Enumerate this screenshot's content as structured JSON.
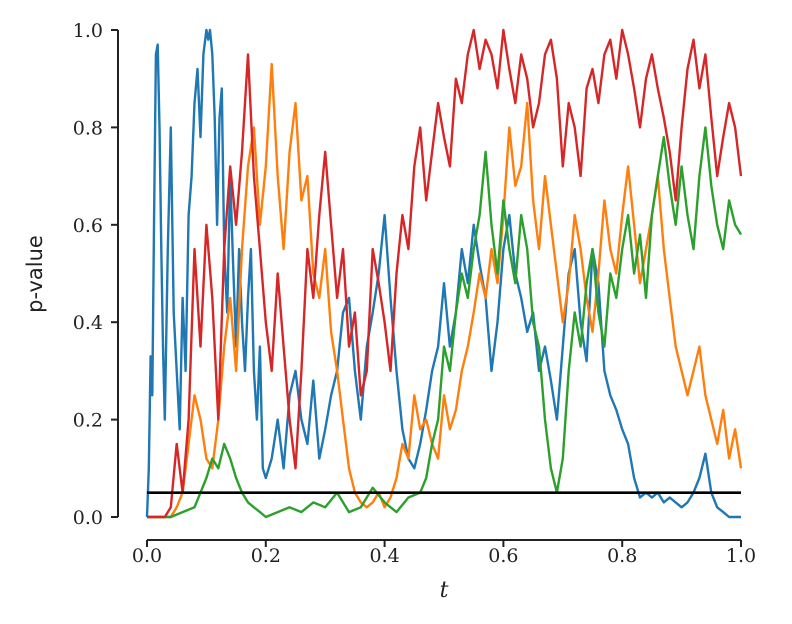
{
  "chart_data": {
    "type": "line",
    "title": "",
    "xlabel": "t",
    "ylabel": "p-value",
    "xlim": [
      0.0,
      1.0
    ],
    "ylim": [
      0.0,
      1.0
    ],
    "grid": false,
    "legend": "none",
    "x_ticks": [
      "0.0",
      "0.2",
      "0.4",
      "0.6",
      "0.8",
      "1.0"
    ],
    "y_ticks": [
      "0.0",
      "0.2",
      "0.4",
      "0.6",
      "0.8",
      "1.0"
    ],
    "threshold": {
      "y": 0.05,
      "color": "#000000"
    },
    "series": [
      {
        "color": "#1f77b4",
        "x": [
          0.0,
          0.003,
          0.006,
          0.009,
          0.012,
          0.015,
          0.018,
          0.021,
          0.024,
          0.027,
          0.03,
          0.035,
          0.04,
          0.045,
          0.05,
          0.055,
          0.06,
          0.065,
          0.07,
          0.075,
          0.08,
          0.085,
          0.09,
          0.095,
          0.1,
          0.103,
          0.106,
          0.11,
          0.114,
          0.118,
          0.122,
          0.126,
          0.13,
          0.135,
          0.14,
          0.145,
          0.15,
          0.155,
          0.16,
          0.165,
          0.17,
          0.175,
          0.18,
          0.185,
          0.19,
          0.195,
          0.2,
          0.21,
          0.22,
          0.23,
          0.24,
          0.25,
          0.26,
          0.27,
          0.28,
          0.29,
          0.3,
          0.31,
          0.32,
          0.33,
          0.34,
          0.35,
          0.36,
          0.37,
          0.38,
          0.39,
          0.4,
          0.41,
          0.42,
          0.43,
          0.44,
          0.45,
          0.46,
          0.47,
          0.48,
          0.49,
          0.5,
          0.51,
          0.52,
          0.53,
          0.54,
          0.55,
          0.56,
          0.57,
          0.58,
          0.59,
          0.6,
          0.61,
          0.62,
          0.63,
          0.64,
          0.65,
          0.66,
          0.67,
          0.68,
          0.69,
          0.7,
          0.71,
          0.72,
          0.73,
          0.74,
          0.75,
          0.76,
          0.77,
          0.78,
          0.79,
          0.8,
          0.81,
          0.82,
          0.83,
          0.84,
          0.85,
          0.86,
          0.87,
          0.88,
          0.89,
          0.9,
          0.91,
          0.92,
          0.93,
          0.94,
          0.95,
          0.96,
          0.97,
          0.98,
          0.99,
          1.0
        ],
        "values": [
          0.0,
          0.1,
          0.33,
          0.25,
          0.62,
          0.95,
          0.97,
          0.8,
          0.55,
          0.35,
          0.2,
          0.55,
          0.8,
          0.42,
          0.3,
          0.18,
          0.45,
          0.3,
          0.62,
          0.7,
          0.85,
          0.92,
          0.78,
          0.95,
          1.0,
          0.98,
          1.0,
          0.95,
          0.82,
          0.6,
          0.82,
          0.88,
          0.55,
          0.42,
          0.7,
          0.52,
          0.35,
          0.55,
          0.4,
          0.3,
          0.45,
          0.55,
          0.3,
          0.2,
          0.35,
          0.1,
          0.08,
          0.12,
          0.2,
          0.1,
          0.25,
          0.3,
          0.2,
          0.15,
          0.28,
          0.12,
          0.18,
          0.25,
          0.3,
          0.42,
          0.45,
          0.3,
          0.2,
          0.35,
          0.42,
          0.5,
          0.62,
          0.45,
          0.3,
          0.18,
          0.12,
          0.1,
          0.15,
          0.22,
          0.3,
          0.35,
          0.48,
          0.35,
          0.42,
          0.55,
          0.48,
          0.6,
          0.52,
          0.45,
          0.3,
          0.4,
          0.55,
          0.62,
          0.5,
          0.45,
          0.38,
          0.42,
          0.3,
          0.35,
          0.28,
          0.2,
          0.35,
          0.5,
          0.55,
          0.4,
          0.32,
          0.55,
          0.48,
          0.3,
          0.25,
          0.22,
          0.18,
          0.15,
          0.08,
          0.04,
          0.05,
          0.04,
          0.05,
          0.03,
          0.04,
          0.03,
          0.02,
          0.03,
          0.05,
          0.08,
          0.13,
          0.05,
          0.02,
          0.01,
          0.0,
          0.0,
          0.0
        ]
      },
      {
        "color": "#ff7f0e",
        "x": [
          0.0,
          0.02,
          0.04,
          0.05,
          0.06,
          0.07,
          0.08,
          0.09,
          0.1,
          0.11,
          0.12,
          0.13,
          0.14,
          0.15,
          0.16,
          0.17,
          0.18,
          0.19,
          0.2,
          0.21,
          0.22,
          0.23,
          0.24,
          0.25,
          0.26,
          0.27,
          0.28,
          0.29,
          0.3,
          0.31,
          0.32,
          0.33,
          0.34,
          0.35,
          0.36,
          0.37,
          0.38,
          0.39,
          0.4,
          0.41,
          0.42,
          0.43,
          0.44,
          0.45,
          0.46,
          0.47,
          0.48,
          0.49,
          0.5,
          0.51,
          0.52,
          0.53,
          0.54,
          0.55,
          0.56,
          0.57,
          0.58,
          0.59,
          0.6,
          0.61,
          0.62,
          0.63,
          0.64,
          0.65,
          0.66,
          0.67,
          0.68,
          0.69,
          0.7,
          0.71,
          0.72,
          0.73,
          0.74,
          0.75,
          0.76,
          0.77,
          0.78,
          0.79,
          0.8,
          0.81,
          0.82,
          0.83,
          0.84,
          0.85,
          0.86,
          0.87,
          0.88,
          0.89,
          0.9,
          0.91,
          0.92,
          0.93,
          0.94,
          0.95,
          0.96,
          0.97,
          0.98,
          0.99,
          1.0
        ],
        "values": [
          0.0,
          0.0,
          0.0,
          0.02,
          0.05,
          0.15,
          0.25,
          0.2,
          0.12,
          0.1,
          0.2,
          0.35,
          0.45,
          0.3,
          0.55,
          0.72,
          0.8,
          0.6,
          0.72,
          0.93,
          0.7,
          0.55,
          0.75,
          0.85,
          0.65,
          0.7,
          0.5,
          0.45,
          0.55,
          0.38,
          0.3,
          0.2,
          0.1,
          0.05,
          0.03,
          0.02,
          0.03,
          0.05,
          0.02,
          0.04,
          0.08,
          0.15,
          0.12,
          0.25,
          0.18,
          0.2,
          0.15,
          0.12,
          0.25,
          0.18,
          0.22,
          0.3,
          0.35,
          0.42,
          0.5,
          0.45,
          0.55,
          0.48,
          0.62,
          0.8,
          0.68,
          0.72,
          0.85,
          0.65,
          0.55,
          0.7,
          0.6,
          0.5,
          0.4,
          0.48,
          0.62,
          0.55,
          0.45,
          0.38,
          0.5,
          0.65,
          0.55,
          0.5,
          0.62,
          0.72,
          0.6,
          0.48,
          0.55,
          0.62,
          0.7,
          0.55,
          0.45,
          0.35,
          0.3,
          0.25,
          0.3,
          0.35,
          0.25,
          0.2,
          0.15,
          0.22,
          0.12,
          0.18,
          0.1
        ]
      },
      {
        "color": "#2ca02c",
        "x": [
          0.0,
          0.02,
          0.04,
          0.06,
          0.08,
          0.09,
          0.1,
          0.11,
          0.12,
          0.13,
          0.14,
          0.15,
          0.16,
          0.17,
          0.18,
          0.19,
          0.2,
          0.22,
          0.24,
          0.26,
          0.28,
          0.3,
          0.32,
          0.34,
          0.36,
          0.38,
          0.4,
          0.42,
          0.44,
          0.46,
          0.47,
          0.48,
          0.49,
          0.5,
          0.51,
          0.52,
          0.53,
          0.54,
          0.55,
          0.56,
          0.57,
          0.58,
          0.59,
          0.6,
          0.61,
          0.62,
          0.63,
          0.64,
          0.65,
          0.66,
          0.67,
          0.68,
          0.69,
          0.7,
          0.71,
          0.72,
          0.73,
          0.74,
          0.75,
          0.76,
          0.77,
          0.78,
          0.79,
          0.8,
          0.81,
          0.82,
          0.83,
          0.84,
          0.85,
          0.86,
          0.87,
          0.88,
          0.89,
          0.9,
          0.91,
          0.92,
          0.93,
          0.94,
          0.95,
          0.96,
          0.97,
          0.98,
          0.99,
          1.0
        ],
        "values": [
          0.0,
          0.0,
          0.0,
          0.01,
          0.02,
          0.05,
          0.08,
          0.12,
          0.1,
          0.15,
          0.12,
          0.08,
          0.05,
          0.03,
          0.02,
          0.01,
          0.0,
          0.01,
          0.02,
          0.01,
          0.03,
          0.02,
          0.05,
          0.01,
          0.02,
          0.06,
          0.03,
          0.01,
          0.04,
          0.05,
          0.08,
          0.15,
          0.2,
          0.35,
          0.3,
          0.42,
          0.5,
          0.45,
          0.55,
          0.62,
          0.75,
          0.6,
          0.5,
          0.65,
          0.55,
          0.48,
          0.62,
          0.55,
          0.4,
          0.35,
          0.2,
          0.1,
          0.05,
          0.12,
          0.3,
          0.42,
          0.35,
          0.48,
          0.55,
          0.42,
          0.35,
          0.5,
          0.45,
          0.55,
          0.62,
          0.5,
          0.58,
          0.45,
          0.62,
          0.7,
          0.78,
          0.68,
          0.6,
          0.72,
          0.62,
          0.55,
          0.7,
          0.8,
          0.68,
          0.6,
          0.55,
          0.65,
          0.6,
          0.58
        ]
      },
      {
        "color": "#d62728",
        "x": [
          0.0,
          0.03,
          0.04,
          0.05,
          0.06,
          0.07,
          0.08,
          0.09,
          0.1,
          0.11,
          0.12,
          0.13,
          0.14,
          0.15,
          0.16,
          0.17,
          0.18,
          0.19,
          0.2,
          0.21,
          0.22,
          0.23,
          0.24,
          0.25,
          0.26,
          0.27,
          0.28,
          0.29,
          0.3,
          0.31,
          0.32,
          0.33,
          0.34,
          0.35,
          0.36,
          0.37,
          0.38,
          0.39,
          0.4,
          0.41,
          0.42,
          0.43,
          0.44,
          0.45,
          0.46,
          0.47,
          0.48,
          0.49,
          0.5,
          0.51,
          0.52,
          0.53,
          0.54,
          0.55,
          0.56,
          0.57,
          0.58,
          0.59,
          0.6,
          0.61,
          0.62,
          0.63,
          0.64,
          0.65,
          0.66,
          0.67,
          0.68,
          0.69,
          0.7,
          0.71,
          0.72,
          0.73,
          0.74,
          0.75,
          0.76,
          0.77,
          0.78,
          0.79,
          0.8,
          0.81,
          0.82,
          0.83,
          0.84,
          0.85,
          0.86,
          0.87,
          0.88,
          0.89,
          0.9,
          0.91,
          0.92,
          0.93,
          0.94,
          0.95,
          0.96,
          0.97,
          0.98,
          0.99,
          1.0
        ],
        "values": [
          0.0,
          0.0,
          0.02,
          0.15,
          0.05,
          0.2,
          0.55,
          0.35,
          0.6,
          0.45,
          0.2,
          0.55,
          0.72,
          0.6,
          0.75,
          0.95,
          0.7,
          0.55,
          0.4,
          0.3,
          0.5,
          0.35,
          0.2,
          0.1,
          0.3,
          0.55,
          0.45,
          0.62,
          0.75,
          0.6,
          0.45,
          0.55,
          0.35,
          0.42,
          0.25,
          0.3,
          0.55,
          0.48,
          0.4,
          0.3,
          0.5,
          0.62,
          0.55,
          0.72,
          0.8,
          0.65,
          0.75,
          0.85,
          0.78,
          0.72,
          0.9,
          0.85,
          0.95,
          1.0,
          0.92,
          0.98,
          0.95,
          0.88,
          1.0,
          0.92,
          0.85,
          0.95,
          0.9,
          0.8,
          0.85,
          0.95,
          0.98,
          0.9,
          0.72,
          0.85,
          0.8,
          0.7,
          0.88,
          0.92,
          0.85,
          0.95,
          0.98,
          0.9,
          1.0,
          0.95,
          0.88,
          0.8,
          0.9,
          0.95,
          0.88,
          0.82,
          0.75,
          0.65,
          0.8,
          0.92,
          0.98,
          0.88,
          0.95,
          0.82,
          0.7,
          0.78,
          0.85,
          0.8,
          0.7
        ]
      }
    ]
  }
}
